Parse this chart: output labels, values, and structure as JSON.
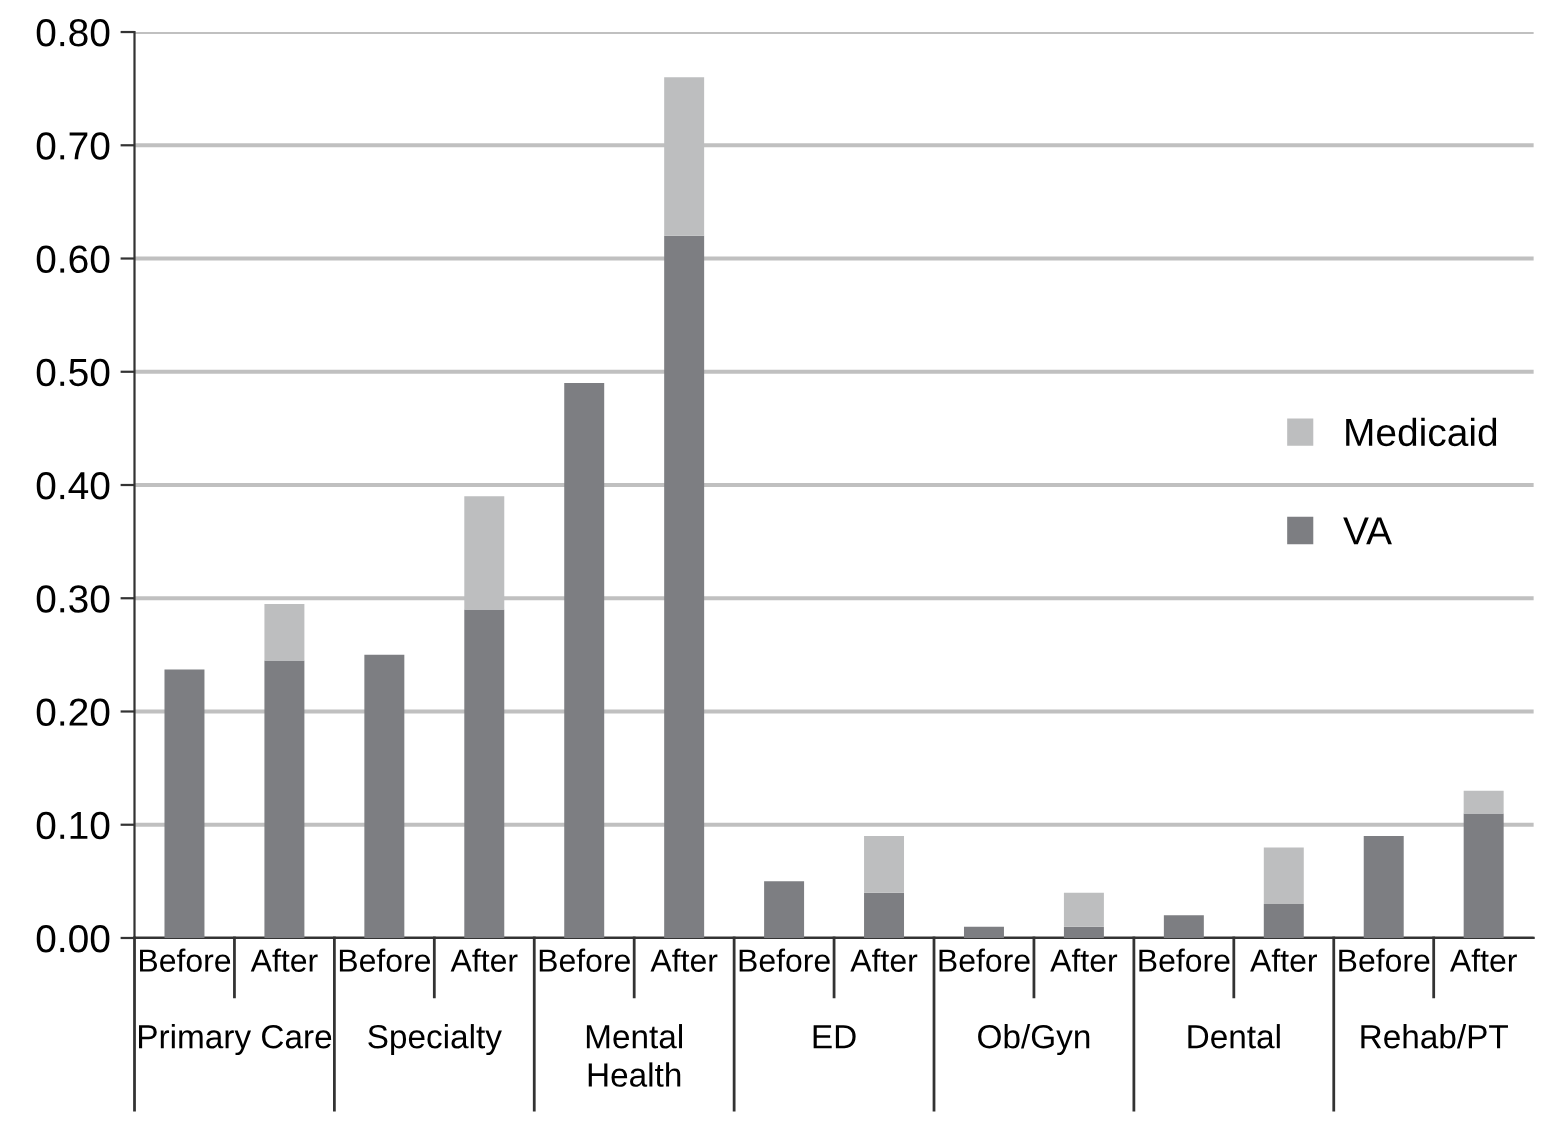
{
  "chart_data": {
    "type": "bar",
    "stacked": true,
    "categories": [
      "Before",
      "After",
      "Before",
      "After",
      "Before",
      "After",
      "Before",
      "After",
      "Before",
      "After",
      "Before",
      "After",
      "Before",
      "After"
    ],
    "annotations": [
      "Primary Care",
      "Specialty",
      "Mental\nHealth",
      "ED",
      "Ob/Gyn",
      "Dental",
      "Rehab/PT"
    ],
    "series": [
      {
        "name": "VA",
        "color": "#7d7e82",
        "values": [
          0.237,
          0.245,
          0.25,
          0.29,
          0.49,
          0.62,
          0.05,
          0.04,
          0.01,
          0.01,
          0.02,
          0.03,
          0.09,
          0.11
        ]
      },
      {
        "name": "Medicaid",
        "color": "#bdbebf",
        "values": [
          null,
          0.05,
          null,
          0.1,
          null,
          0.14,
          null,
          0.05,
          null,
          0.03,
          null,
          0.05,
          null,
          0.02
        ]
      }
    ],
    "ylim": [
      0,
      0.8
    ],
    "yticks": [
      {
        "value": 0,
        "label": "0.00"
      },
      {
        "value": 0.1,
        "label": "0.10"
      },
      {
        "value": 0.2,
        "label": "0.20"
      },
      {
        "value": 0.3,
        "label": "0.30"
      },
      {
        "value": 0.4,
        "label": "0.40"
      },
      {
        "value": 0.5,
        "label": "0.50"
      },
      {
        "value": 0.6,
        "label": "0.60"
      },
      {
        "value": 0.7,
        "label": "0.70"
      },
      {
        "value": 0.8,
        "label": "0.80"
      }
    ],
    "grid": "y",
    "legend": "right"
  }
}
